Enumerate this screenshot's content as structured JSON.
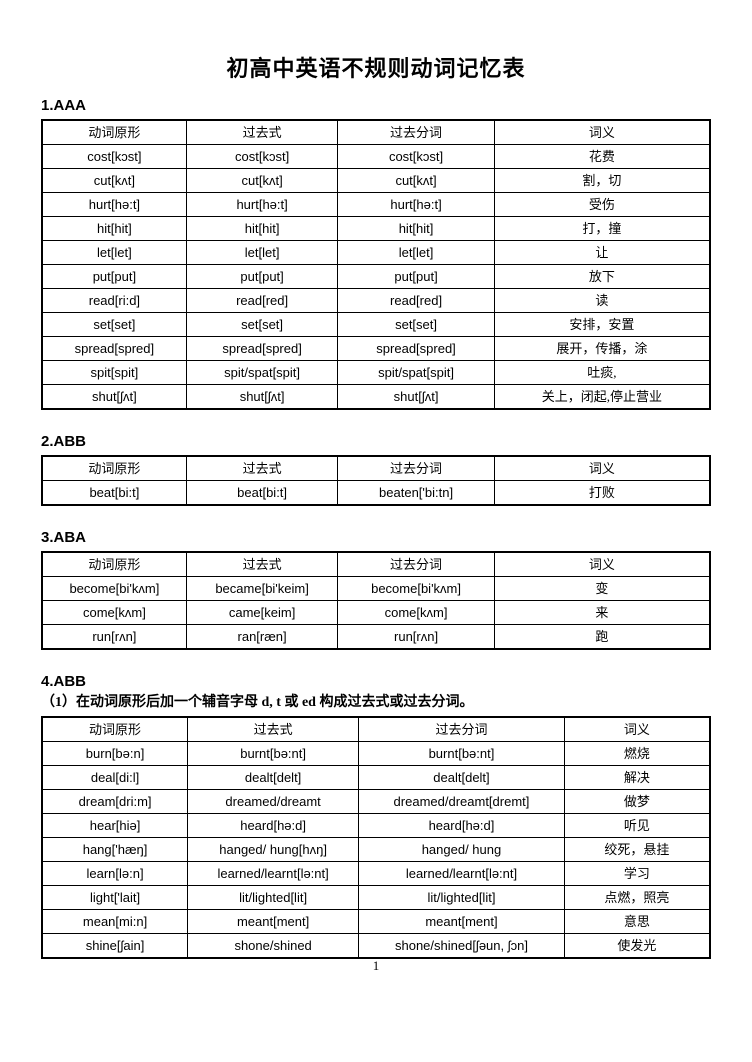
{
  "page": {
    "title": "初高中英语不规则动词记忆表",
    "page_number": "1"
  },
  "columns": [
    "动词原形",
    "过去式",
    "过去分词",
    "词义"
  ],
  "sections": [
    {
      "label": "1.AAA",
      "rows": [
        [
          "cost[kɔst]",
          "cost[kɔst]",
          "cost[kɔst]",
          "花费"
        ],
        [
          "cut[kʌt]",
          "cut[kʌt]",
          "cut[kʌt]",
          "割，切"
        ],
        [
          "hurt[hə:t]",
          "hurt[hə:t]",
          "hurt[hə:t]",
          "受伤"
        ],
        [
          "hit[hit]",
          "hit[hit]",
          "hit[hit]",
          "打，撞"
        ],
        [
          "let[let]",
          "let[let]",
          "let[let]",
          "让"
        ],
        [
          "put[put]",
          "put[put]",
          "put[put]",
          "放下"
        ],
        [
          "read[ri:d]",
          "read[red]",
          "read[red]",
          "读"
        ],
        [
          "set[set]",
          "set[set]",
          "set[set]",
          "安排，安置"
        ],
        [
          "spread[spred]",
          "spread[spred]",
          "spread[spred]",
          "展开，传播，涂"
        ],
        [
          "spit[spit]",
          "spit/spat[spit]",
          "spit/spat[spit]",
          "吐痰,"
        ],
        [
          "shut[ʃʌt]",
          "shut[ʃʌt]",
          "shut[ʃʌt]",
          "关上，闭起,停止营业"
        ]
      ]
    },
    {
      "label": "2.ABB",
      "rows": [
        [
          "beat[bi:t]",
          "beat[bi:t]",
          "beaten['bi:tn]",
          "打败"
        ]
      ]
    },
    {
      "label": "3.ABA",
      "rows": [
        [
          "become[bi'kʌm]",
          "became[bi'keim]",
          "become[bi'kʌm]",
          "变"
        ],
        [
          "come[kʌm]",
          "came[keim]",
          "come[kʌm]",
          "来"
        ],
        [
          "run[rʌn]",
          "ran[ræn]",
          "run[rʌn]",
          "跑"
        ]
      ]
    },
    {
      "label": "4.ABB",
      "note": "（1）在动词原形后加一个辅音字母 d, t 或 ed 构成过去式或过去分词。",
      "rows": [
        [
          "burn[bə:n]",
          "burnt[bə:nt]",
          "burnt[bə:nt]",
          "燃烧"
        ],
        [
          "deal[di:l]",
          "dealt[delt]",
          "dealt[delt]",
          "解决"
        ],
        [
          "dream[dri:m]",
          "dreamed/dreamt",
          "dreamed/dreamt[dremt]",
          "做梦"
        ],
        [
          "hear[hiə]",
          "heard[hə:d]",
          "heard[hə:d]",
          "听见"
        ],
        [
          "hang['hæŋ]",
          "hanged/ hung[hʌŋ]",
          "hanged/ hung",
          "绞死，悬挂"
        ],
        [
          "learn[lə:n]",
          "learned/learnt[lə:nt]",
          "learned/learnt[lə:nt]",
          "学习"
        ],
        [
          "light['lait]",
          "lit/lighted[lit]",
          "lit/lighted[lit]",
          "点燃，照亮"
        ],
        [
          "mean[mi:n]",
          "meant[ment]",
          "meant[ment]",
          "意思"
        ],
        [
          "shine[ʃain]",
          "shone/shined",
          "shone/shined[ʃəun, ʃɔn]",
          "使发光"
        ]
      ]
    }
  ]
}
